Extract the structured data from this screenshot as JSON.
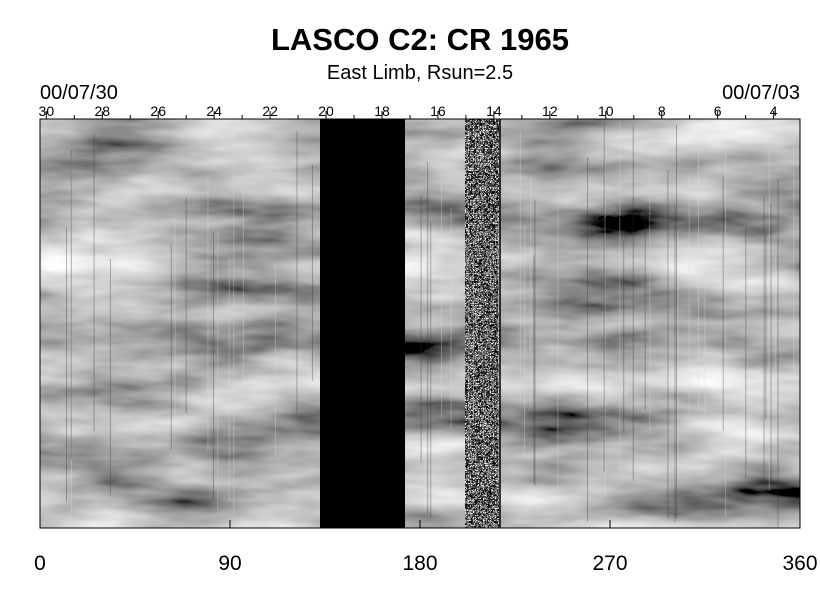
{
  "chart_data": {
    "type": "image",
    "title": "LASCO C2: CR 1965",
    "subtitle": "East Limb, Rsun=2.5",
    "start_date": "00/07/30",
    "end_date": "00/07/03",
    "xlim": [
      0,
      360
    ],
    "xticks": [
      0,
      90,
      180,
      270,
      360
    ],
    "top_ticks": [
      {
        "value": 3,
        "label": "30"
      },
      {
        "value": 29.5,
        "label": "28"
      },
      {
        "value": 56,
        "label": "26"
      },
      {
        "value": 82.5,
        "label": "24"
      },
      {
        "value": 109,
        "label": "22"
      },
      {
        "value": 135.5,
        "label": "20"
      },
      {
        "value": 162,
        "label": "18"
      },
      {
        "value": 188.5,
        "label": "16"
      },
      {
        "value": 215,
        "label": "14"
      },
      {
        "value": 241.5,
        "label": "12"
      },
      {
        "value": 268,
        "label": "10"
      },
      {
        "value": 294.5,
        "label": "8"
      },
      {
        "value": 321,
        "label": "6"
      },
      {
        "value": 347.5,
        "label": "4"
      }
    ],
    "colormap": "gray"
  }
}
